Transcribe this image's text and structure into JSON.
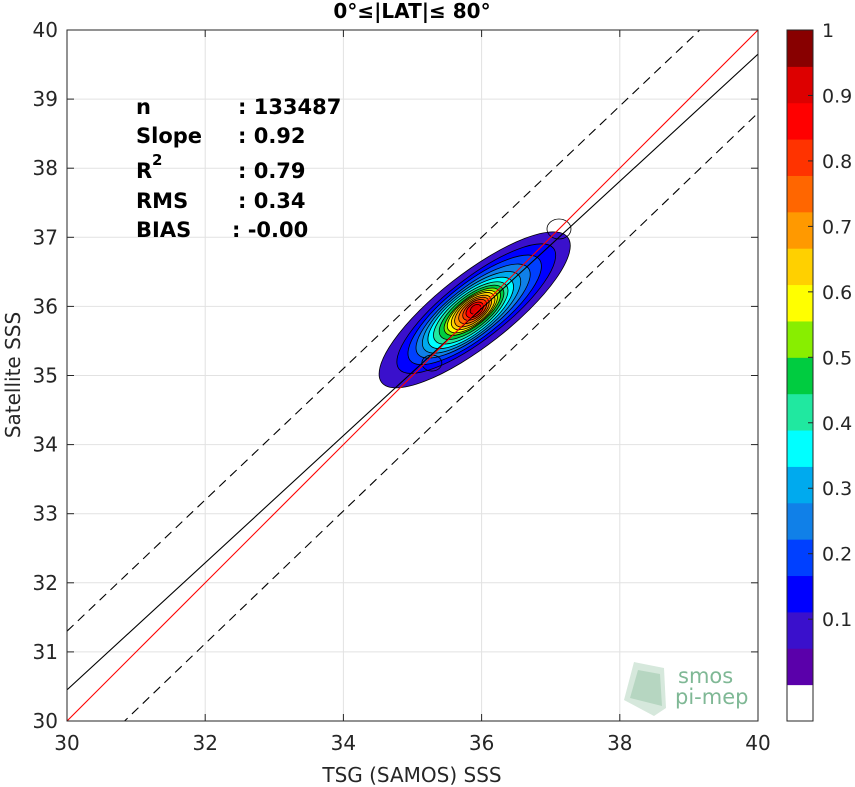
{
  "chart_data": {
    "type": "contour",
    "title": "0°≤|LAT|≤ 80°",
    "xlabel": "TSG (SAMOS) SSS",
    "ylabel": "Satellite SSS",
    "xlim": [
      30,
      40
    ],
    "ylim": [
      30,
      40
    ],
    "xticks": [
      "30",
      "32",
      "34",
      "36",
      "38",
      "40"
    ],
    "yticks": [
      "30",
      "31",
      "32",
      "33",
      "34",
      "35",
      "36",
      "37",
      "38",
      "39",
      "40"
    ],
    "grid": true,
    "stats": [
      {
        "label": "n",
        "value": ": 133487"
      },
      {
        "label": "Slope",
        "value": ": 0.92"
      },
      {
        "label": "R",
        "sup": "2",
        "value": ": 0.79"
      },
      {
        "label": "RMS",
        "value": ": 0.34"
      },
      {
        "label": "BIAS",
        "value": ": -0.00"
      }
    ],
    "lines": {
      "identity": {
        "color": "#ff0000",
        "points": [
          [
            30,
            30
          ],
          [
            40,
            40
          ]
        ]
      },
      "fit": {
        "color": "#000000",
        "points": [
          [
            30,
            30.45
          ],
          [
            40,
            39.65
          ]
        ]
      },
      "upper_bound": {
        "color": "#000000",
        "dashed": true,
        "points": [
          [
            30,
            31.3
          ],
          [
            40,
            40.8
          ]
        ]
      },
      "lower_bound": {
        "color": "#000000",
        "dashed": true,
        "points": [
          [
            30,
            29.2
          ],
          [
            40,
            38.8
          ]
        ]
      }
    },
    "density_center": {
      "x": 35.9,
      "y": 35.95
    },
    "colorbar": {
      "ticks": [
        "0.1",
        "0.2",
        "0.3",
        "0.4",
        "0.5",
        "0.6",
        "0.7",
        "0.8",
        "0.9",
        "1"
      ],
      "colors": [
        "#ffffff",
        "#5a00aa",
        "#3a10cc",
        "#0000ff",
        "#0040ff",
        "#1080e8",
        "#00aaee",
        "#00ffff",
        "#20e8a0",
        "#00cc40",
        "#88ee00",
        "#ffff00",
        "#ffd000",
        "#ff9900",
        "#ff6600",
        "#ff3300",
        "#ff0000",
        "#dd0000",
        "#880000"
      ]
    }
  },
  "logo": {
    "line1": "smos",
    "line2": "pi-mep"
  }
}
